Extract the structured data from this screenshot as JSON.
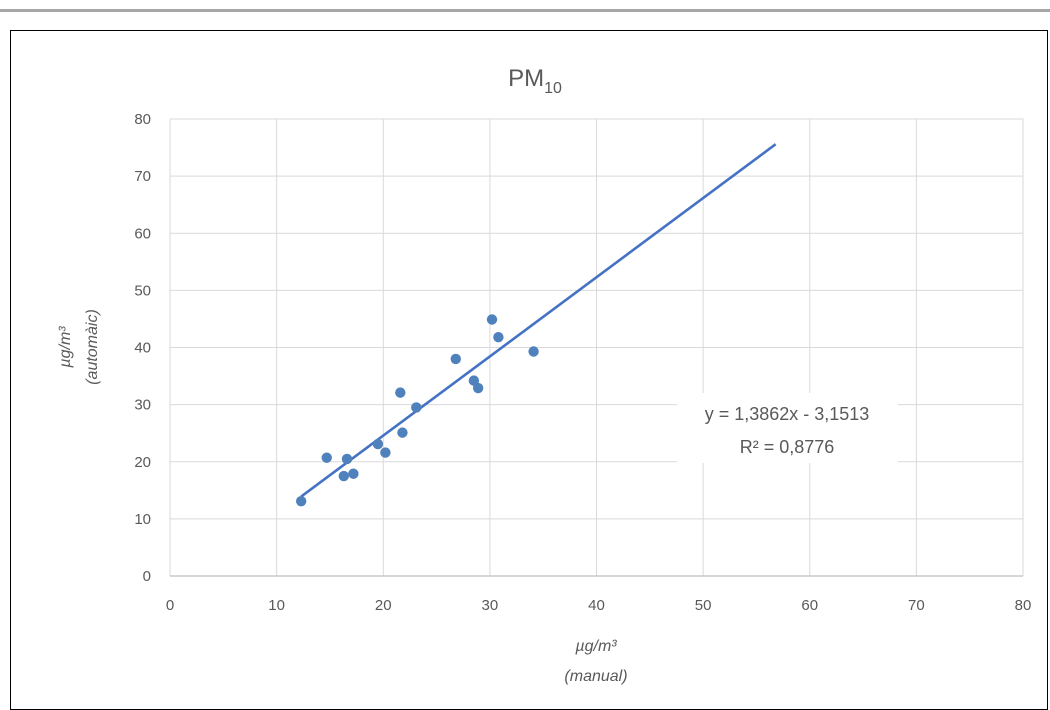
{
  "chart_data": {
    "type": "scatter",
    "title": "PM",
    "title_subscript": "10",
    "xlabel_line1": "µg/m³",
    "xlabel_line2": "(manual)",
    "ylabel_line1": "µg/m³",
    "ylabel_line2": "(automàic)",
    "xlim": [
      0,
      80
    ],
    "ylim": [
      0,
      80
    ],
    "x_ticks": [
      "0",
      "10",
      "20",
      "30",
      "40",
      "50",
      "60",
      "70",
      "80"
    ],
    "y_ticks": [
      "0",
      "10",
      "20",
      "30",
      "40",
      "50",
      "60",
      "70",
      "80"
    ],
    "grid": true,
    "legend": "none",
    "series": [
      {
        "marker_color": "#4f81bd",
        "points": [
          {
            "x": 12.3,
            "y": 13.1
          },
          {
            "x": 14.7,
            "y": 20.7
          },
          {
            "x": 16.3,
            "y": 17.5
          },
          {
            "x": 16.6,
            "y": 20.5
          },
          {
            "x": 17.2,
            "y": 17.9
          },
          {
            "x": 19.5,
            "y": 23.1
          },
          {
            "x": 20.2,
            "y": 21.6
          },
          {
            "x": 21.6,
            "y": 32.1
          },
          {
            "x": 21.8,
            "y": 25.1
          },
          {
            "x": 23.1,
            "y": 29.5
          },
          {
            "x": 26.8,
            "y": 38.0
          },
          {
            "x": 28.5,
            "y": 34.2
          },
          {
            "x": 28.9,
            "y": 32.9
          },
          {
            "x": 30.2,
            "y": 44.9
          },
          {
            "x": 30.8,
            "y": 41.8
          },
          {
            "x": 34.1,
            "y": 39.3
          }
        ]
      }
    ],
    "trendline": {
      "slope": 1.3862,
      "intercept": -3.1513,
      "x_start": 12.3,
      "x_end": 56.8,
      "color": "#4472c4",
      "equation_label": "y = 1,3862x - 3,1513",
      "r2_label": "R² = 0,8776"
    },
    "colors": {
      "grid": "#d9d9d9",
      "text": "#595959",
      "frame": "#000000",
      "top_rule": "#a6a6a6"
    }
  }
}
